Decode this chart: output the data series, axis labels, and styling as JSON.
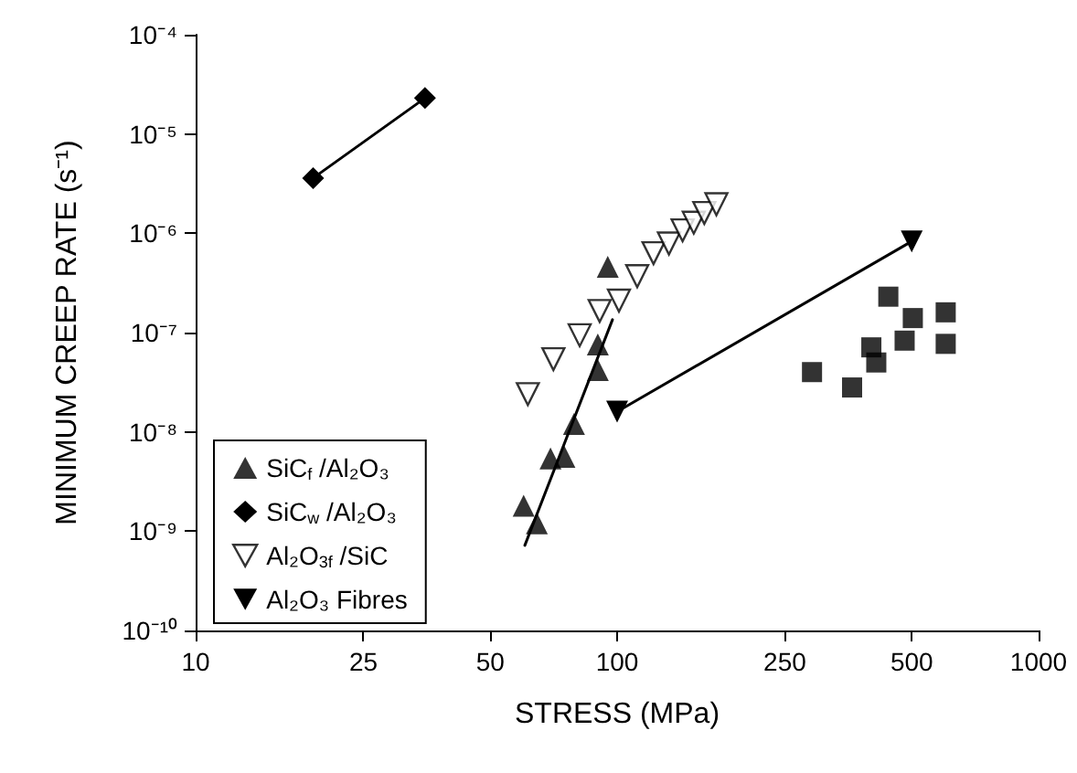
{
  "chart_data": {
    "type": "scatter",
    "xlabel": "STRESS (MPa)",
    "ylabel": "MINIMUM CREEP RATE (s⁻¹)",
    "log": "xy",
    "xlim": [
      10,
      1000
    ],
    "ylim": [
      1e-10,
      0.0001
    ],
    "xticks": [
      10,
      25,
      50,
      100,
      250,
      500,
      1000
    ],
    "yticks": [
      {
        "value": 1e-10,
        "label": "10⁻¹⁰"
      },
      {
        "value": 1e-09,
        "label": "10⁻⁹"
      },
      {
        "value": 1e-08,
        "label": "10⁻⁸"
      },
      {
        "value": 1e-07,
        "label": "10⁻⁷"
      },
      {
        "value": 1e-06,
        "label": "10⁻⁶"
      },
      {
        "value": 1e-05,
        "label": "10⁻⁵"
      },
      {
        "value": 0.0001,
        "label": "10⁻⁴"
      }
    ],
    "grid": false,
    "legend": "bottom left",
    "series": [
      {
        "name": "SiC$_{f}$ /Al₂O₃",
        "marker": "triangle",
        "color": "#000000",
        "x": [
          95,
          90,
          90,
          79,
          75,
          69.5,
          60,
          64.5
        ],
        "values": [
          4.6e-07,
          7.6e-08,
          4.2e-08,
          1.2e-08,
          5.6e-09,
          5.4e-09,
          1.8e-09,
          1.2e-09
        ]
      },
      {
        "type": "line",
        "marker": "none",
        "color": "#000000",
        "x": [
          60.4,
          97.5
        ],
        "values": [
          7.2e-10,
          1.35e-07
        ]
      },
      {
        "name": "SiC$_{w}$ /Al₂O₃",
        "type": "line",
        "marker": "diamond",
        "color": "#000000",
        "x": [
          19,
          35
        ],
        "values": [
          3.6e-06,
          2.3e-05
        ]
      },
      {
        "marker": "square",
        "color": "#000000",
        "x": [
          290,
          361,
          401,
          412,
          440,
          481,
          503,
          602,
          602
        ],
        "values": [
          4e-08,
          2.8e-08,
          7.1e-08,
          5e-08,
          2.3e-07,
          8.3e-08,
          1.4e-07,
          1.6e-07,
          7.7e-08
        ]
      },
      {
        "name": "Al₂O$_{3f}$ /SiC",
        "marker": "triangle-down-open",
        "color": "#000000",
        "x": [
          61.4,
          70.6,
          81.5,
          90.9,
          101,
          111.6,
          122,
          132.7,
          143,
          152,
          161,
          172
        ],
        "values": [
          2.4e-08,
          5.4e-08,
          9.4e-08,
          1.65e-07,
          2.1e-07,
          3.7e-07,
          6.3e-07,
          7.9e-07,
          1.07e-06,
          1.28e-06,
          1.6e-06,
          1.96e-06
        ]
      },
      {
        "name": "Al₂O₃ Fibres",
        "type": "line",
        "marker": "triangle-down",
        "color": "#000000",
        "x": [
          100,
          500
        ],
        "values": [
          1.6e-08,
          8.3e-07
        ]
      }
    ]
  }
}
